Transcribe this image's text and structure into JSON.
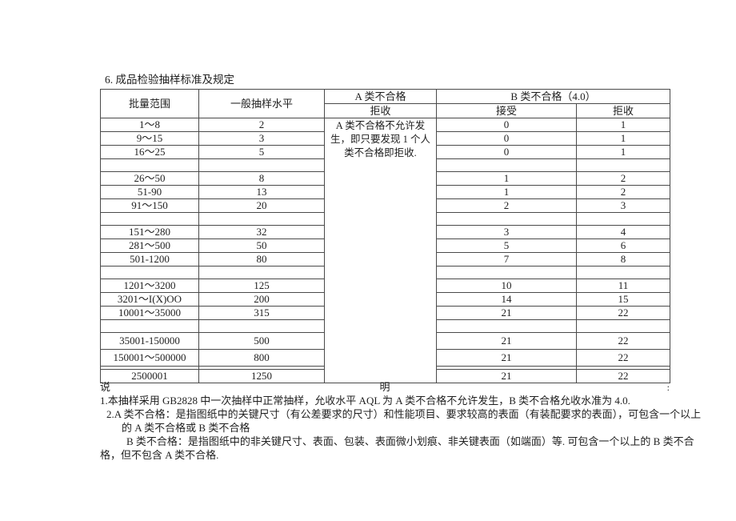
{
  "page": {
    "title": "6. 成品检验抽样标准及规定"
  },
  "table": {
    "col_batch_range": "批量范围",
    "col_sampling_level": "一般抽样水平",
    "col_class_a": "A 类不合格",
    "col_class_a_sub": "拒收",
    "col_class_b": "B 类不合格（4.0）",
    "col_class_b_accept": "接受",
    "col_class_b_reject": "拒收",
    "class_a_merged_note": "A 类不合格不允许发生，即只要发现 1 个人类不合格即拒收.",
    "rows": [
      {
        "type": "data",
        "range": "1～8",
        "level": "2",
        "accept": "0",
        "reject": "1"
      },
      {
        "type": "data",
        "range": "9～15",
        "level": "3",
        "accept": "0",
        "reject": "1"
      },
      {
        "type": "data",
        "range": "16～25",
        "level": "5",
        "accept": "0",
        "reject": "1"
      },
      {
        "type": "spacer"
      },
      {
        "type": "data",
        "range": "26～50",
        "level": "8",
        "accept": "1",
        "reject": "2"
      },
      {
        "type": "data",
        "range": "51-90",
        "level": "13",
        "accept": "1",
        "reject": "2"
      },
      {
        "type": "data",
        "range": "91～150",
        "level": "20",
        "accept": "2",
        "reject": "3"
      },
      {
        "type": "spacer"
      },
      {
        "type": "data",
        "range": "151～280",
        "level": "32",
        "accept": "3",
        "reject": "4"
      },
      {
        "type": "data",
        "range": "281～500",
        "level": "50",
        "accept": "5",
        "reject": "6"
      },
      {
        "type": "data",
        "range": "501-1200",
        "level": "80",
        "accept": "7",
        "reject": "8"
      },
      {
        "type": "spacer"
      },
      {
        "type": "data",
        "range": "1201～3200",
        "level": "125",
        "accept": "10",
        "reject": "11"
      },
      {
        "type": "data",
        "range": "3201～I(X)OO",
        "level": "200",
        "accept": "14",
        "reject": "15"
      },
      {
        "type": "data",
        "range": "10001～35000",
        "level": "315",
        "accept": "21",
        "reject": "22"
      },
      {
        "type": "spacer"
      },
      {
        "type": "data",
        "tall": true,
        "range": "35001-150000",
        "level": "500",
        "accept": "21",
        "reject": "22"
      },
      {
        "type": "data",
        "tall": true,
        "range": "150001～500000",
        "level": "800",
        "accept": "21",
        "reject": "22"
      },
      {
        "type": "spacer_thin"
      },
      {
        "type": "data",
        "range": "2500001",
        "level": "1250",
        "accept": "21",
        "reject": "22"
      }
    ]
  },
  "notes": {
    "say_left": "说",
    "say_center": "明",
    "say_right": ":",
    "lines": [
      "1.本抽样采用 GB2828 中一次抽样中正常抽样，允收水平 AQL 为 A 类不合格不允许发生，B 类不合格允收水准为 4.0.",
      "2.A 类不合格：是指图纸中的关键尺寸（有公差要求的尺寸）和性能项目、要求较高的表面（有装配要求的表面），可包含一个以上",
      "的 A 类不合格或 B 类不合格",
      "B 类不合格：是指图纸中的非关键尺寸、表面、包装、表面微小划痕、非关键表面（如端面）等. 可包含一个以上的 B 类不合",
      "格，但不包含 A 类不合格."
    ]
  }
}
